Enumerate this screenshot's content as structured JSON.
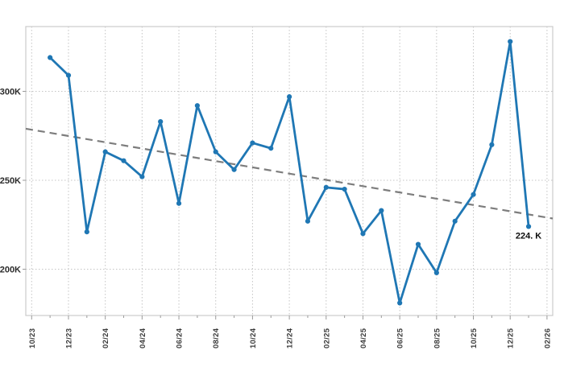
{
  "chart_data": {
    "type": "line",
    "title": "",
    "xlabel": "",
    "ylabel": "",
    "unit": "K",
    "x": [
      "11/23",
      "12/23",
      "01/24",
      "02/24",
      "03/24",
      "04/24",
      "05/24",
      "06/24",
      "07/24",
      "08/24",
      "09/24",
      "10/24",
      "11/24",
      "12/24",
      "01/25",
      "02/25",
      "03/25",
      "04/25",
      "05/25",
      "06/25",
      "07/25",
      "08/25",
      "09/25",
      "10/25",
      "11/25",
      "12/25",
      "01/26"
    ],
    "values": [
      319,
      309,
      221,
      266,
      261,
      252,
      283,
      237,
      292,
      266,
      256,
      271,
      268,
      297,
      227,
      246,
      245,
      220,
      233,
      181,
      214,
      198,
      227,
      242,
      270,
      328,
      224
    ],
    "x_tick_labels": [
      "10/23",
      "12/23",
      "02/24",
      "04/24",
      "06/24",
      "08/24",
      "10/24",
      "12/24",
      "02/25",
      "04/25",
      "06/25",
      "08/25",
      "10/25",
      "12/25",
      "02/26"
    ],
    "y_tick_labels": [
      "200K",
      "250K",
      "300K"
    ],
    "y_tick_values": [
      200,
      250,
      300
    ],
    "ylim": [
      174,
      336
    ],
    "grid": true,
    "legend": "none",
    "trend_line": {
      "start_value": 279,
      "end_value": 228.5,
      "style": "dashed"
    },
    "annotation": {
      "text": "224. K",
      "x": "01/26",
      "value": 224
    },
    "colors": {
      "line": "#1f77b4",
      "marker": "#1f77b4",
      "trend": "#7d7d7d",
      "grid": "#c4c4c4",
      "border": "#cbcbcb",
      "tick": "#9a9a9a",
      "tick_text": "#3a3a3a",
      "annotation_text": "#0d0d0d",
      "background": "#ffffff"
    }
  }
}
